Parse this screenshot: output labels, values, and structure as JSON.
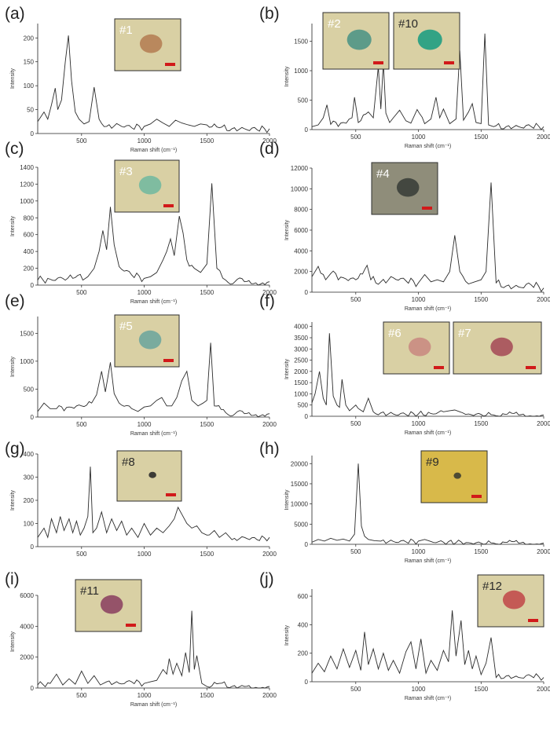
{
  "chart_data": [
    {
      "type": "line",
      "panel_label": "(a)",
      "xlabel": "Raman shift (cm⁻¹)",
      "ylabel": "Intensity",
      "xlim": [
        150,
        2000
      ],
      "ylim": [
        0,
        230
      ],
      "xticks": [
        "500",
        "1000",
        "1500",
        "2000"
      ],
      "yticks": [
        "0",
        "50",
        "100",
        "150",
        "200"
      ],
      "insets": [
        {
          "label": "#1",
          "color": "#b58055"
        }
      ],
      "series": [
        {
          "x": [
            150,
            200,
            230,
            260,
            290,
            310,
            340,
            370,
            395,
            420,
            450,
            480,
            520,
            560,
            600,
            640,
            700,
            800,
            900,
            1000,
            1050,
            1100,
            1150,
            1200,
            1250,
            1300,
            1350,
            1400,
            1450,
            1500,
            1600,
            1700,
            1800,
            1900,
            2000
          ],
          "y": [
            25,
            45,
            30,
            60,
            95,
            50,
            70,
            150,
            205,
            110,
            45,
            30,
            20,
            25,
            97,
            30,
            15,
            18,
            12,
            15,
            20,
            30,
            22,
            15,
            28,
            22,
            18,
            15,
            20,
            18,
            12,
            10,
            10,
            8,
            10
          ]
        }
      ]
    },
    {
      "type": "line",
      "panel_label": "(b)",
      "xlabel": "Raman shift (cm⁻¹)",
      "ylabel": "Intensity",
      "xlim": [
        150,
        2000
      ],
      "ylim": [
        0,
        1800
      ],
      "xticks": [
        "500",
        "1000",
        "1500",
        "2000"
      ],
      "yticks": [
        "0",
        "500",
        "1000",
        "1500"
      ],
      "insets": [
        {
          "label": "#2",
          "color": "#4f9586"
        },
        {
          "label": "#10",
          "color": "#1f9d82"
        }
      ],
      "series": [
        {
          "x": [
            150,
            200,
            240,
            270,
            300,
            400,
            470,
            490,
            520,
            600,
            640,
            680,
            700,
            720,
            740,
            770,
            800,
            850,
            900,
            940,
            990,
            1050,
            1100,
            1140,
            1170,
            1200,
            1250,
            1300,
            1330,
            1360,
            1400,
            1430,
            1460,
            1500,
            1530,
            1560,
            1600,
            1700,
            1800,
            1900,
            2000
          ],
          "y": [
            50,
            80,
            200,
            420,
            90,
            120,
            200,
            550,
            120,
            300,
            200,
            1070,
            350,
            1150,
            280,
            120,
            200,
            330,
            150,
            110,
            340,
            100,
            180,
            550,
            200,
            350,
            100,
            180,
            1340,
            160,
            300,
            440,
            120,
            100,
            1630,
            80,
            50,
            50,
            50,
            50,
            50
          ]
        }
      ]
    },
    {
      "type": "line",
      "panel_label": "(c)",
      "xlabel": "Raman shift (cm⁻¹)",
      "ylabel": "Intensity",
      "xlim": [
        150,
        2000
      ],
      "ylim": [
        0,
        1400
      ],
      "xticks": [
        "500",
        "1000",
        "1500",
        "2000"
      ],
      "yticks": [
        "0",
        "200",
        "400",
        "600",
        "800",
        "1000",
        "1200",
        "1400"
      ],
      "insets": [
        {
          "label": "#3",
          "color": "#74b9a0"
        }
      ],
      "series": [
        {
          "x": [
            150,
            250,
            350,
            450,
            550,
            600,
            640,
            670,
            700,
            730,
            760,
            800,
            900,
            1000,
            1050,
            1100,
            1150,
            1180,
            1210,
            1240,
            1280,
            1310,
            1340,
            1400,
            1450,
            1500,
            1540,
            1580,
            1650,
            1800,
            2000
          ],
          "y": [
            60,
            70,
            80,
            90,
            100,
            200,
            400,
            650,
            420,
            930,
            480,
            220,
            120,
            80,
            100,
            150,
            300,
            400,
            550,
            350,
            820,
            620,
            300,
            200,
            150,
            250,
            1210,
            200,
            60,
            40,
            40
          ]
        }
      ]
    },
    {
      "type": "line",
      "panel_label": "(d)",
      "xlabel": "Raman shift (cm⁻¹)",
      "ylabel": "Intensity",
      "xlim": [
        150,
        2000
      ],
      "ylim": [
        0,
        12000
      ],
      "xticks": [
        "500",
        "1000",
        "1500",
        "2000"
      ],
      "yticks": [
        "0",
        "2000",
        "4000",
        "6000",
        "8000",
        "10000",
        "12000"
      ],
      "insets": [
        {
          "label": "#4",
          "color": "#3b3f3a"
        }
      ],
      "series": [
        {
          "x": [
            150,
            200,
            260,
            300,
            400,
            500,
            590,
            620,
            700,
            800,
            900,
            1000,
            1050,
            1100,
            1150,
            1200,
            1250,
            1290,
            1330,
            1400,
            1450,
            1500,
            1540,
            1580,
            1620,
            1700,
            1800,
            1900,
            2000
          ],
          "y": [
            1500,
            2500,
            1200,
            1800,
            1400,
            1200,
            2600,
            1200,
            1000,
            1400,
            1100,
            900,
            1700,
            1000,
            1200,
            1000,
            2000,
            5500,
            2000,
            800,
            1000,
            1200,
            2000,
            10600,
            900,
            600,
            500,
            700,
            400
          ]
        }
      ]
    },
    {
      "type": "line",
      "panel_label": "(e)",
      "xlabel": "Raman shift (cm⁻¹)",
      "ylabel": "Intensity",
      "xlim": [
        150,
        2000
      ],
      "ylim": [
        0,
        1800
      ],
      "xticks": [
        "500",
        "1000",
        "1500",
        "2000"
      ],
      "yticks": [
        "0",
        "500",
        "1000",
        "1500"
      ],
      "insets": [
        {
          "label": "#5",
          "color": "#6fa69d"
        }
      ],
      "series": [
        {
          "x": [
            150,
            200,
            250,
            300,
            400,
            500,
            580,
            620,
            660,
            690,
            730,
            760,
            800,
            900,
            950,
            1000,
            1050,
            1100,
            1140,
            1180,
            1220,
            1260,
            1300,
            1340,
            1380,
            1430,
            1470,
            1500,
            1530,
            1560,
            1650,
            1800,
            2000
          ],
          "y": [
            100,
            250,
            150,
            150,
            180,
            200,
            250,
            400,
            820,
            450,
            980,
            420,
            250,
            150,
            100,
            180,
            200,
            300,
            350,
            200,
            200,
            350,
            650,
            820,
            300,
            200,
            250,
            300,
            1330,
            200,
            80,
            60,
            60
          ]
        }
      ]
    },
    {
      "type": "line",
      "panel_label": "(f)",
      "xlabel": "Raman shift (cm⁻¹)",
      "ylabel": "Intensity",
      "xlim": [
        150,
        2000
      ],
      "ylim": [
        0,
        4200
      ],
      "xticks": [
        "500",
        "1000",
        "1500",
        "2000"
      ],
      "yticks": [
        "0",
        "500",
        "1000",
        "1500",
        "2000",
        "2500",
        "3000",
        "3500",
        "4000"
      ],
      "insets": [
        {
          "label": "#6",
          "color": "#c98b82"
        },
        {
          "label": "#7",
          "color": "#a64f5a"
        }
      ],
      "series": [
        {
          "x": [
            150,
            175,
            210,
            240,
            265,
            290,
            320,
            350,
            370,
            390,
            420,
            450,
            500,
            560,
            600,
            640,
            700,
            800,
            900,
            1000,
            1100,
            1200,
            1250,
            1290,
            1330,
            1400,
            1500,
            1600,
            1800,
            2000
          ],
          "y": [
            600,
            1000,
            2000,
            800,
            500,
            3700,
            900,
            500,
            400,
            1650,
            500,
            250,
            500,
            200,
            800,
            200,
            150,
            100,
            80,
            100,
            120,
            200,
            250,
            280,
            200,
            100,
            80,
            60,
            60,
            60
          ]
        }
      ]
    },
    {
      "type": "line",
      "panel_label": "(g)",
      "xlabel": "",
      "ylabel": "Intensity",
      "xlim": [
        150,
        2000
      ],
      "ylim": [
        0,
        400
      ],
      "xticks": [
        "500",
        "1000",
        "1500",
        "2000"
      ],
      "yticks": [
        "0",
        "100",
        "200",
        "300",
        "400"
      ],
      "insets": [
        {
          "label": "#8",
          "color": "#2a2a2a"
        }
      ],
      "series": [
        {
          "x": [
            150,
            200,
            230,
            260,
            300,
            330,
            360,
            400,
            430,
            460,
            490,
            520,
            550,
            570,
            590,
            620,
            660,
            700,
            740,
            780,
            820,
            860,
            900,
            950,
            1000,
            1050,
            1100,
            1150,
            1200,
            1240,
            1270,
            1300,
            1340,
            1380,
            1420,
            1460,
            1500,
            1560,
            1600,
            1650,
            1700,
            1800,
            1900,
            2000
          ],
          "y": [
            40,
            80,
            40,
            120,
            60,
            130,
            70,
            120,
            60,
            110,
            50,
            80,
            130,
            345,
            60,
            80,
            150,
            60,
            120,
            70,
            110,
            50,
            80,
            40,
            100,
            50,
            80,
            60,
            90,
            120,
            170,
            140,
            100,
            80,
            90,
            60,
            50,
            70,
            40,
            60,
            30,
            40,
            30,
            40
          ]
        }
      ]
    },
    {
      "type": "line",
      "panel_label": "(h)",
      "xlabel": "Raman shift (cm⁻¹)",
      "ylabel": "Intensity",
      "xlim": [
        150,
        2000
      ],
      "ylim": [
        0,
        22000
      ],
      "xticks": [
        "500",
        "1000",
        "1500",
        "2000"
      ],
      "yticks": [
        "0",
        "5000",
        "10000",
        "15000",
        "20000"
      ],
      "insets": [
        {
          "label": "#9",
          "color": "#3f3f32"
        }
      ],
      "series": [
        {
          "x": [
            150,
            200,
            250,
            300,
            350,
            400,
            450,
            490,
            520,
            545,
            570,
            600,
            650,
            700,
            800,
            900,
            1000,
            1050,
            1100,
            1200,
            1300,
            1400,
            1500,
            1600,
            1800,
            2000
          ],
          "y": [
            500,
            1200,
            800,
            1500,
            1000,
            1300,
            800,
            2500,
            20000,
            4500,
            2000,
            1200,
            900,
            800,
            700,
            600,
            800,
            1200,
            700,
            500,
            400,
            400,
            300,
            300,
            300,
            300
          ]
        }
      ]
    },
    {
      "type": "line",
      "panel_label": "(i)",
      "xlabel": "Raman shift (cm⁻¹)",
      "ylabel": "Intensity",
      "xlim": [
        150,
        2000
      ],
      "ylim": [
        0,
        6000
      ],
      "xticks": [
        "500",
        "1000",
        "1500",
        "2000"
      ],
      "yticks": [
        "0",
        "2000",
        "4000",
        "6000"
      ],
      "insets": [
        {
          "label": "#11",
          "color": "#8d4563"
        }
      ],
      "series": [
        {
          "x": [
            150,
            250,
            300,
            350,
            400,
            450,
            500,
            550,
            600,
            650,
            700,
            800,
            900,
            1000,
            1050,
            1100,
            1150,
            1180,
            1200,
            1230,
            1260,
            1300,
            1330,
            1360,
            1380,
            1400,
            1420,
            1460,
            1500,
            1600,
            1700,
            1800,
            2000
          ],
          "y": [
            200,
            300,
            900,
            200,
            600,
            250,
            1100,
            300,
            800,
            200,
            400,
            300,
            400,
            300,
            400,
            500,
            1200,
            900,
            1900,
            900,
            1600,
            800,
            2300,
            1000,
            5000,
            1200,
            2100,
            300,
            100,
            300,
            100,
            100,
            100
          ]
        }
      ]
    },
    {
      "type": "line",
      "panel_label": "(j)",
      "xlabel": "Raman shift (cm⁻¹)",
      "ylabel": "Intensity",
      "xlim": [
        150,
        2000
      ],
      "ylim": [
        0,
        650
      ],
      "xticks": [
        "500",
        "1000",
        "1500",
        "2000"
      ],
      "yticks": [
        "0",
        "200",
        "400",
        "600"
      ],
      "insets": [
        {
          "label": "#12",
          "color": "#c14c4c"
        }
      ],
      "series": [
        {
          "x": [
            150,
            200,
            250,
            300,
            350,
            400,
            450,
            500,
            540,
            570,
            600,
            640,
            680,
            720,
            760,
            800,
            850,
            900,
            940,
            980,
            1020,
            1060,
            1100,
            1150,
            1200,
            1240,
            1270,
            1300,
            1340,
            1370,
            1400,
            1430,
            1460,
            1500,
            1540,
            1580,
            1620,
            1700,
            1800,
            1900,
            2000
          ],
          "y": [
            60,
            130,
            70,
            180,
            90,
            230,
            100,
            220,
            80,
            350,
            120,
            230,
            90,
            200,
            80,
            150,
            60,
            210,
            280,
            90,
            300,
            60,
            150,
            80,
            220,
            140,
            500,
            180,
            430,
            120,
            220,
            90,
            180,
            50,
            130,
            310,
            30,
            40,
            30,
            40,
            30
          ]
        }
      ]
    }
  ]
}
